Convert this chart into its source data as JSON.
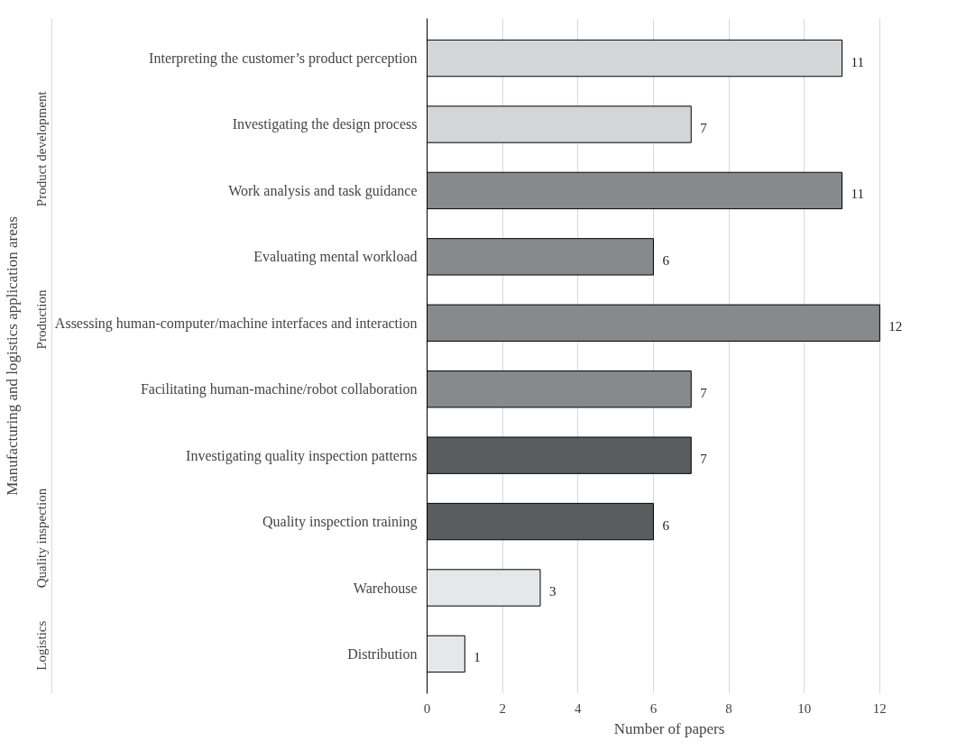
{
  "chart_data": {
    "type": "bar",
    "orientation": "horizontal",
    "xlabel": "Number of papers",
    "ylabel": "Manufacturing and logistics application areas",
    "categories": [
      "Interpreting the customer’s product perception",
      "Investigating the design process",
      "Work analysis and task guidance",
      "Evaluating mental workload",
      "Assessing human-computer/machine interfaces and interaction",
      "Facilitating human-machine/robot collaboration",
      "Investigating quality inspection patterns",
      "Quality inspection training",
      "Warehouse",
      "Distribution"
    ],
    "series": [
      {
        "color": "#d4d5d6",
        "values": [
          11,
          7,
          null,
          null,
          null,
          null,
          null,
          null,
          null,
          null
        ]
      },
      {
        "color": "#88898b",
        "values": [
          null,
          null,
          11,
          6,
          12,
          7,
          null,
          null,
          null,
          null
        ]
      },
      {
        "color": "#5b5c5e",
        "values": [
          null,
          null,
          null,
          null,
          null,
          null,
          7,
          6,
          null,
          null
        ]
      },
      {
        "color": "#e6e7e8",
        "values": [
          null,
          null,
          null,
          null,
          null,
          null,
          null,
          null,
          3,
          1
        ]
      }
    ],
    "xlim": [
      0,
      12
    ],
    "xticks": [
      0,
      2,
      4,
      6,
      8,
      10,
      12
    ],
    "grid": "x",
    "data_labels": true,
    "annotations": [
      "Product development",
      "Production",
      "Quality inspection",
      "Logistics"
    ]
  }
}
